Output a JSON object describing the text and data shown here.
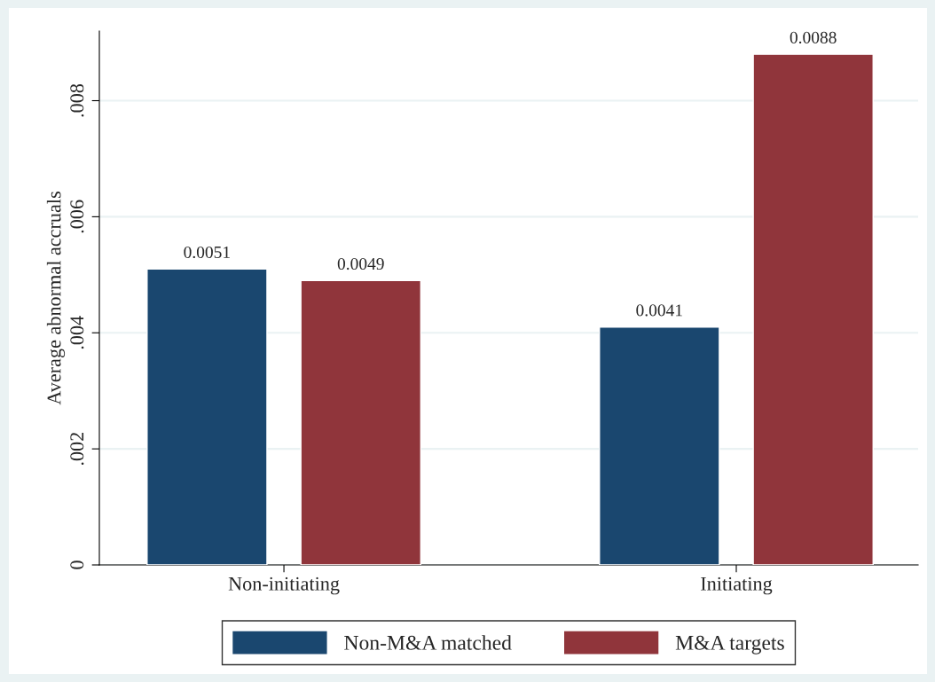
{
  "chart_data": {
    "type": "bar",
    "ylabel": "Average abnormal accruals",
    "categories": [
      "Non-initiating",
      "Initiating"
    ],
    "series": [
      {
        "name": "Non-M&A matched",
        "color": "#1a476f",
        "values": [
          0.0051,
          0.0041
        ]
      },
      {
        "name": "M&A targets",
        "color": "#90353b",
        "values": [
          0.0049,
          0.0088
        ]
      }
    ],
    "ylim": [
      0,
      0.0092
    ],
    "yticks": [
      0,
      {
        "value": 0.002,
        "label": ".002"
      },
      {
        "value": 0.004,
        "label": ".004"
      },
      {
        "value": 0.006,
        "label": ".006"
      },
      {
        "value": 0.008,
        "label": ".008"
      }
    ],
    "grid": "y",
    "legend": "bottom",
    "data_labels": true
  }
}
